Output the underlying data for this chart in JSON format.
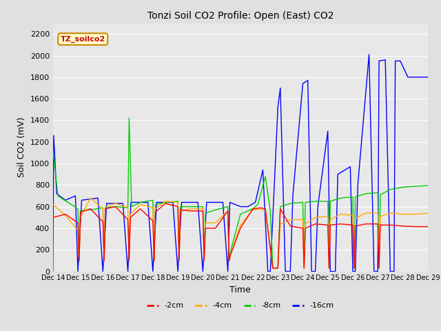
{
  "title": "Tonzi Soil CO2 Profile: Open (East) CO2",
  "xlabel": "Time",
  "ylabel": "Soil CO2 (mV)",
  "ylim": [
    0,
    2300
  ],
  "yticks": [
    0,
    200,
    400,
    600,
    800,
    1000,
    1200,
    1400,
    1600,
    1800,
    2000,
    2200
  ],
  "background_color": "#e0e0e0",
  "plot_bg_color": "#e8e8e8",
  "grid_color": "#ffffff",
  "annotation_text": "TZ_soilco2",
  "annotation_color": "#cc0000",
  "annotation_bg": "#ffffcc",
  "annotation_border": "#cc8800",
  "legend_items": [
    "-2cm",
    "-4cm",
    "-8cm",
    "-16cm"
  ],
  "legend_colors": [
    "#ff0000",
    "#ffaa00",
    "#00cc00",
    "#0000ff"
  ],
  "series_colors": {
    "2cm": "#ff0000",
    "4cm": "#ffaa00",
    "8cm": "#00cc00",
    "16cm": "#0000ff"
  },
  "xtick_labels": [
    "Dec 14",
    "Dec 15",
    "Dec 16",
    "Dec 17",
    "Dec 18",
    "Dec 19",
    "Dec 20",
    "Dec 21",
    "Dec 22",
    "Dec 23",
    "Dec 24",
    "Dec 25",
    "Dec 26",
    "Dec 27",
    "Dec 28",
    "Dec 29"
  ]
}
